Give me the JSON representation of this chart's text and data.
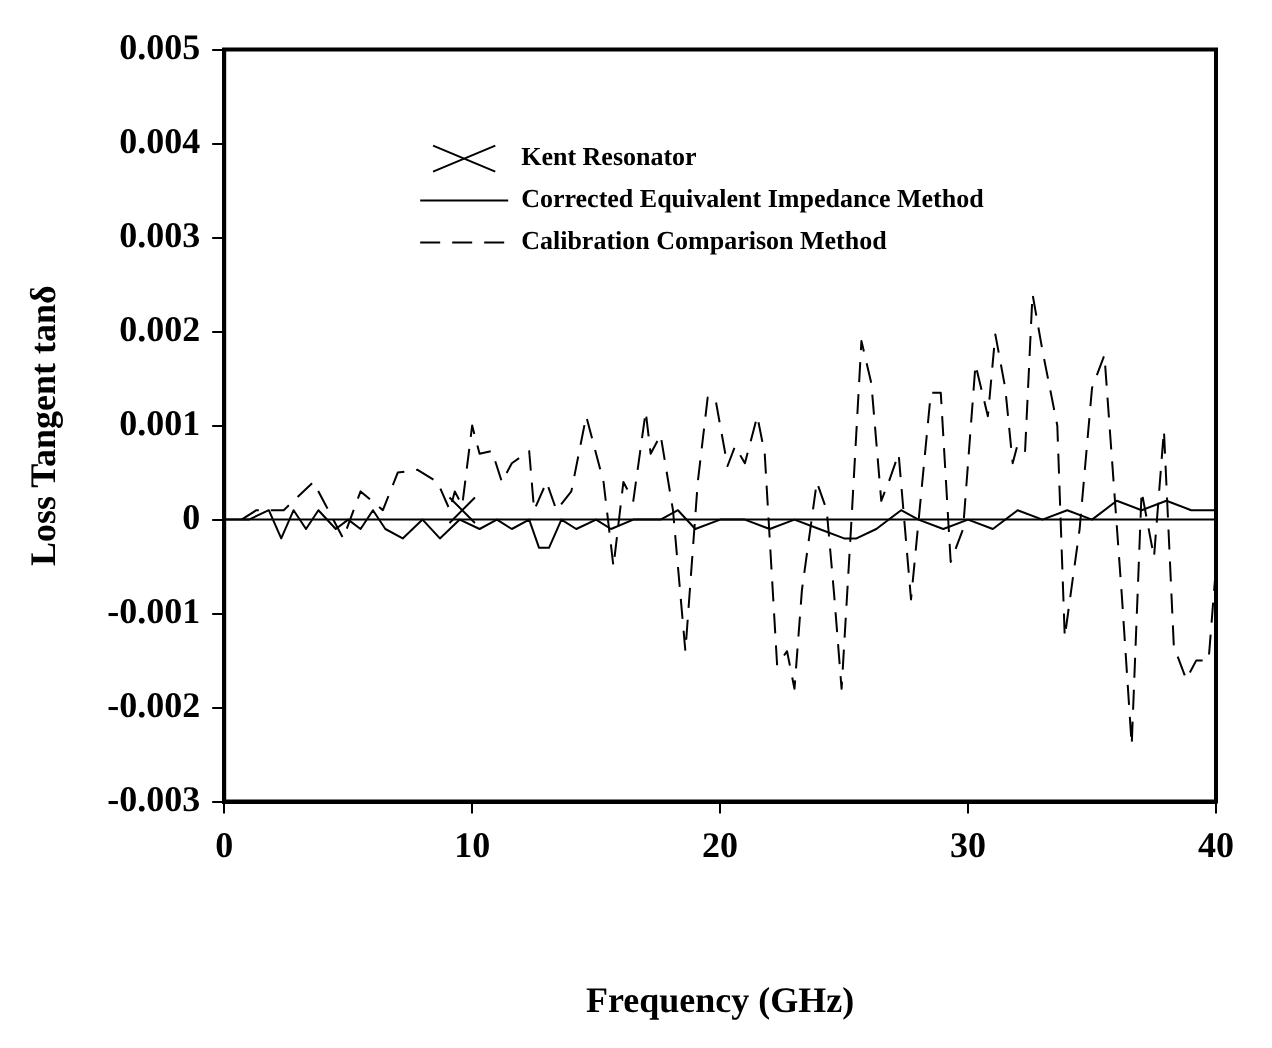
{
  "chart_data": {
    "type": "line",
    "xlabel": "Frequency (GHz)",
    "ylabel": "Loss Tangent tanδ",
    "xlim": [
      0,
      40
    ],
    "xticks": [
      0,
      10,
      20,
      30,
      40
    ],
    "ylim": [
      -0.003,
      0.005
    ],
    "yticks": [
      -0.003,
      -0.002,
      -0.001,
      0,
      0.001,
      0.002,
      0.003,
      0.004,
      0.005
    ],
    "grid": false,
    "legend": "top",
    "ref_lines": [
      {
        "axis": "y",
        "value": 0,
        "color": "#000000"
      }
    ],
    "series": [
      {
        "name": "Kent Resonator",
        "type": "scatter",
        "marker": "cross",
        "color": "#000000",
        "x": [
          9.6
        ],
        "values": [
          0.0001
        ]
      },
      {
        "name": "Corrected Equivalent Impedance Method",
        "color": "#000000",
        "line_style": "solid",
        "x": [
          0,
          1,
          1.8,
          2.3,
          2.8,
          3.3,
          3.8,
          4.5,
          5,
          5.5,
          6,
          6.5,
          7.2,
          8,
          8.7,
          9.5,
          10.3,
          11,
          11.6,
          12.3,
          12.7,
          13.1,
          13.6,
          14.2,
          15,
          15.6,
          16.5,
          17.6,
          18.3,
          19,
          20,
          21,
          22,
          23,
          24,
          25,
          25.5,
          26.3,
          27.3,
          28,
          29,
          30,
          31,
          32,
          33,
          34,
          35,
          36,
          37,
          38,
          39,
          40
        ],
        "values": [
          0,
          0,
          0.0001,
          -0.0002,
          0.0001,
          -0.0001,
          0.0001,
          -0.0001,
          0,
          -0.0001,
          0.0001,
          -0.0001,
          -0.0002,
          0,
          -0.0002,
          0,
          -0.0001,
          0,
          -0.0001,
          0,
          -0.0003,
          -0.0003,
          0,
          -0.0001,
          0,
          -0.0001,
          0,
          0,
          0.0001,
          -0.0001,
          0,
          0,
          -0.0001,
          0,
          -0.0001,
          -0.0002,
          -0.0002,
          -0.0001,
          0.0001,
          0,
          -0.0001,
          0,
          -0.0001,
          0.0001,
          0,
          0.0001,
          0,
          0.0002,
          0.0001,
          0.0002,
          0.0001,
          0.0001
        ]
      },
      {
        "name": "Calibration Comparison Method",
        "color": "#000000",
        "line_style": "dashed",
        "x": [
          0.7,
          1.3,
          2.4,
          3.6,
          4.1,
          4.8,
          5.5,
          6.4,
          7.0,
          7.8,
          8.6,
          9.1,
          9.3,
          9.6,
          10.0,
          10.3,
          10.8,
          11.2,
          11.6,
          12.3,
          12.5,
          13.0,
          13.4,
          14.0,
          14.6,
          15.3,
          15.7,
          16.1,
          16.5,
          17.0,
          17.2,
          17.6,
          18.1,
          18.6,
          19.1,
          19.5,
          19.8,
          20.3,
          20.6,
          21.0,
          21.5,
          21.8,
          22.3,
          22.7,
          23.0,
          23.3,
          23.9,
          24.3,
          24.6,
          24.9,
          25.3,
          25.7,
          26.1,
          26.5,
          26.8,
          27.2,
          27.7,
          28.5,
          28.9,
          29.3,
          29.8,
          30.3,
          30.8,
          31.1,
          31.5,
          31.8,
          32.0,
          32.3,
          32.6,
          33.0,
          33.6,
          33.9,
          34.5,
          35.0,
          35.5,
          36.2,
          36.6,
          37.0,
          37.5,
          37.9,
          38.3,
          38.8,
          39.2,
          39.7,
          40
        ],
        "values": [
          0,
          0.0001,
          0.0001,
          0.0004,
          0.00015,
          -0.0002,
          0.0003,
          0.0001,
          0.0005,
          0.00053,
          0.0004,
          0.0001,
          0.0003,
          0.00015,
          0.001,
          0.0007,
          0.00073,
          0.0004,
          0.0006,
          0.00073,
          0.0001,
          0.0004,
          0.0001,
          0.0003,
          0.0011,
          0.0004,
          -0.0005,
          0.0004,
          0.0002,
          0.00115,
          0.0007,
          0.0009,
          0.0001,
          -0.0014,
          0.0004,
          0.0013,
          0.0013,
          0.00057,
          0.00078,
          0.0006,
          0.0011,
          0.0007,
          -0.00155,
          -0.0014,
          -0.0018,
          -0.00075,
          0.0004,
          0.0001,
          -0.0008,
          -0.0018,
          0,
          0.0019,
          0.00145,
          0.0002,
          0.0004,
          0.0007,
          -0.00085,
          0.00135,
          0.00135,
          -0.00045,
          -0.0001,
          0.00165,
          0.0011,
          0.00197,
          0.0014,
          0.0006,
          0.0008,
          0.00073,
          0.0024,
          0.0018,
          0.001,
          -0.00125,
          -0.0001,
          0.0014,
          0.00175,
          -0.0008,
          -0.0024,
          0.0003,
          -0.0004,
          0.00095,
          -0.00135,
          -0.0017,
          -0.0015,
          -0.0015,
          -0.0005
        ]
      }
    ]
  }
}
